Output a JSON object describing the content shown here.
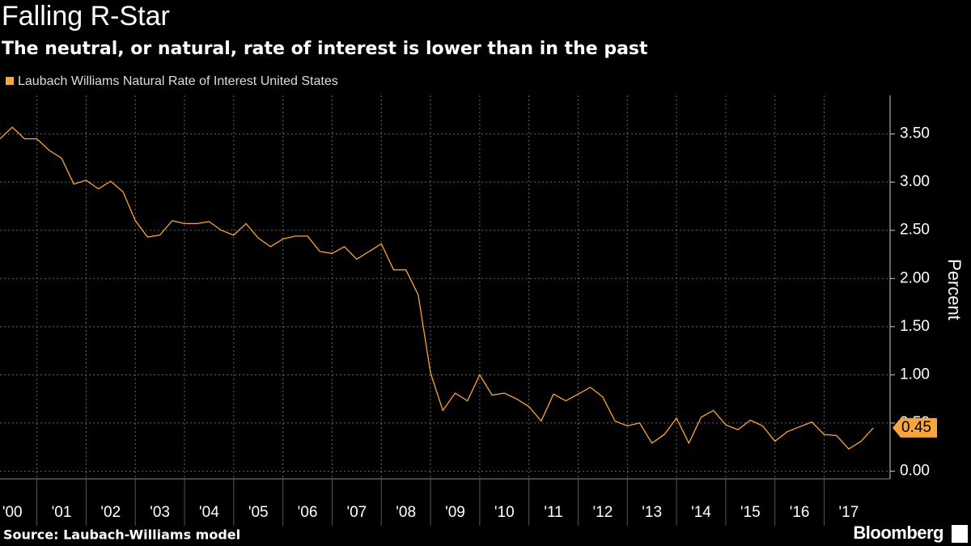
{
  "chart_data": {
    "type": "line",
    "title": "Falling R-Star",
    "subtitle": "The neutral, or natural, rate of interest is lower than in the past",
    "y_label": "Percent",
    "source": "Source: Laubach-Williams model",
    "brand": "Bloomberg",
    "x": [
      2000.25,
      2000.5,
      2000.75,
      2001,
      2001.25,
      2001.5,
      2001.75,
      2002,
      2002.25,
      2002.5,
      2002.75,
      2003,
      2003.25,
      2003.5,
      2003.75,
      2004,
      2004.25,
      2004.5,
      2004.75,
      2005,
      2005.25,
      2005.5,
      2005.75,
      2006,
      2006.25,
      2006.5,
      2006.75,
      2007,
      2007.25,
      2007.5,
      2007.75,
      2008,
      2008.25,
      2008.5,
      2008.75,
      2009,
      2009.25,
      2009.5,
      2009.75,
      2010,
      2010.25,
      2010.5,
      2010.75,
      2011,
      2011.25,
      2011.5,
      2011.75,
      2012,
      2012.25,
      2012.5,
      2012.75,
      2013,
      2013.25,
      2013.5,
      2013.75,
      2014,
      2014.25,
      2014.5,
      2014.75,
      2015,
      2015.25,
      2015.5,
      2015.75,
      2016,
      2016.25,
      2016.5,
      2016.75,
      2017,
      2017.25,
      2017.5,
      2017.75,
      2018
    ],
    "series": [
      {
        "name": "Laubach Williams Natural Rate of Interest United States",
        "color": "#f7a53c",
        "values": [
          3.45,
          3.57,
          3.45,
          3.45,
          3.33,
          3.25,
          2.98,
          3.02,
          2.93,
          3.01,
          2.9,
          2.6,
          2.43,
          2.45,
          2.6,
          2.57,
          2.57,
          2.59,
          2.5,
          2.45,
          2.57,
          2.42,
          2.33,
          2.41,
          2.44,
          2.44,
          2.28,
          2.26,
          2.33,
          2.2,
          2.28,
          2.36,
          2.09,
          2.09,
          1.83,
          1.02,
          0.63,
          0.81,
          0.73,
          1.0,
          0.79,
          0.81,
          0.75,
          0.67,
          0.52,
          0.8,
          0.73,
          0.8,
          0.87,
          0.77,
          0.52,
          0.47,
          0.5,
          0.29,
          0.38,
          0.55,
          0.29,
          0.56,
          0.63,
          0.48,
          0.43,
          0.53,
          0.47,
          0.31,
          0.41,
          0.46,
          0.51,
          0.38,
          0.37,
          0.23,
          0.31,
          0.45
        ]
      }
    ],
    "xlim": [
      2000.25,
      2018.34
    ],
    "xticks": [
      {
        "value": 2000,
        "label": "'00"
      },
      {
        "value": 2001,
        "label": "'01"
      },
      {
        "value": 2002,
        "label": "'02"
      },
      {
        "value": 2003,
        "label": "'03"
      },
      {
        "value": 2004,
        "label": "'04"
      },
      {
        "value": 2005,
        "label": "'05"
      },
      {
        "value": 2006,
        "label": "'06"
      },
      {
        "value": 2007,
        "label": "'07"
      },
      {
        "value": 2008,
        "label": "'08"
      },
      {
        "value": 2009,
        "label": "'09"
      },
      {
        "value": 2010,
        "label": "'10"
      },
      {
        "value": 2011,
        "label": "'11"
      },
      {
        "value": 2012,
        "label": "'12"
      },
      {
        "value": 2013,
        "label": "'13"
      },
      {
        "value": 2014,
        "label": "'14"
      },
      {
        "value": 2015,
        "label": "'15"
      },
      {
        "value": 2016,
        "label": "'16"
      },
      {
        "value": 2017,
        "label": "'17"
      }
    ],
    "ylim": [
      -0.08,
      3.9
    ],
    "yticks": [
      {
        "value": 0,
        "label": "0.00"
      },
      {
        "value": 0.5,
        "label": "0.50"
      },
      {
        "value": 1,
        "label": "1.00"
      },
      {
        "value": 1.5,
        "label": "1.50"
      },
      {
        "value": 2,
        "label": "2.00"
      },
      {
        "value": 2.5,
        "label": "2.50"
      },
      {
        "value": 3,
        "label": "3.00"
      },
      {
        "value": 3.5,
        "label": "3.50"
      }
    ],
    "grid": true
  }
}
